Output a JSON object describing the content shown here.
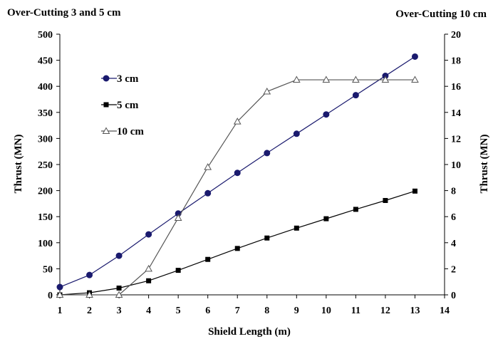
{
  "chart_data": {
    "type": "line",
    "left_title": "Over-Cutting 3 and 5 cm",
    "right_title": "Over-Cutting 10 cm",
    "xlabel": "Shield  Length (m)",
    "ylabel_left": "Thrust (MN)",
    "ylabel_right": "Thrust (MN)",
    "xlim": [
      1,
      14
    ],
    "x_ticks": [
      1,
      2,
      3,
      4,
      5,
      6,
      7,
      8,
      9,
      10,
      11,
      12,
      13,
      14
    ],
    "ylim_left": [
      0,
      500
    ],
    "y_ticks_left": [
      0,
      50,
      100,
      150,
      200,
      250,
      300,
      350,
      400,
      450,
      500
    ],
    "ylim_right": [
      0,
      20
    ],
    "y_ticks_right": [
      0,
      2,
      4,
      6,
      8,
      10,
      12,
      14,
      16,
      18,
      20
    ],
    "grid": false,
    "legend_position": "upper-left",
    "x": [
      1,
      2,
      3,
      4,
      5,
      6,
      7,
      8,
      9,
      10,
      11,
      12,
      13
    ],
    "series": [
      {
        "name": "3 cm",
        "axis": "left",
        "marker": "circle",
        "color": "#1a1a6e",
        "values": [
          15,
          38,
          75,
          116,
          156,
          195,
          234,
          272,
          309,
          346,
          383,
          420,
          457
        ]
      },
      {
        "name": "5 cm",
        "axis": "left",
        "marker": "square",
        "color": "#000000",
        "values": [
          0,
          4,
          13,
          27,
          47,
          68,
          89,
          109,
          128,
          146,
          164,
          181,
          199
        ]
      },
      {
        "name": "10 cm",
        "axis": "right",
        "marker": "triangle-open",
        "color": "#555555",
        "values": [
          0,
          0,
          0,
          2.0,
          5.9,
          9.8,
          13.3,
          15.6,
          16.5,
          16.5,
          16.5,
          16.5,
          16.5
        ]
      }
    ]
  }
}
